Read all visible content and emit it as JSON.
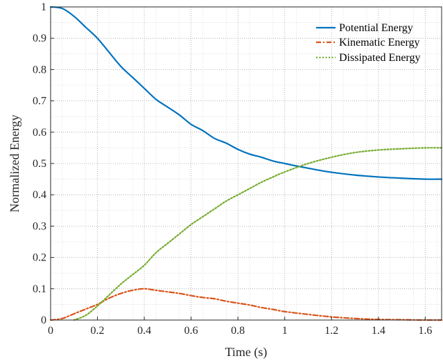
{
  "chart_data": {
    "type": "line",
    "xlabel": "Time (s)",
    "ylabel": "Normalized Energy",
    "xlim": [
      0,
      1.67
    ],
    "ylim": [
      0,
      1
    ],
    "xticks": [
      "0",
      "0.2",
      "0.4",
      "0.6",
      "0.8",
      "1",
      "1.2",
      "1.4",
      "1.6"
    ],
    "yticks": [
      "0",
      "0.1",
      "0.2",
      "0.3",
      "0.4",
      "0.5",
      "0.6",
      "0.7",
      "0.8",
      "0.9",
      "1"
    ],
    "grid": "dotted",
    "minor_grid": true,
    "legend_position": "top-right",
    "series": [
      {
        "name": "Potential Energy",
        "color": "#0072BD",
        "style": "solid",
        "x": [
          0,
          0.05,
          0.1,
          0.15,
          0.2,
          0.25,
          0.3,
          0.35,
          0.4,
          0.45,
          0.5,
          0.55,
          0.6,
          0.65,
          0.7,
          0.75,
          0.8,
          0.85,
          0.9,
          0.95,
          1.0,
          1.05,
          1.1,
          1.15,
          1.2,
          1.3,
          1.4,
          1.5,
          1.6,
          1.67
        ],
        "y": [
          1.0,
          0.995,
          0.97,
          0.935,
          0.9,
          0.855,
          0.81,
          0.775,
          0.74,
          0.705,
          0.68,
          0.655,
          0.625,
          0.605,
          0.58,
          0.565,
          0.545,
          0.53,
          0.52,
          0.508,
          0.5,
          0.492,
          0.485,
          0.478,
          0.472,
          0.463,
          0.457,
          0.453,
          0.45,
          0.45
        ]
      },
      {
        "name": "Kinematic Energy",
        "color": "#D95319",
        "style": "dashdot",
        "x": [
          0,
          0.05,
          0.1,
          0.15,
          0.2,
          0.25,
          0.3,
          0.35,
          0.4,
          0.45,
          0.5,
          0.55,
          0.6,
          0.65,
          0.7,
          0.75,
          0.8,
          0.85,
          0.9,
          0.95,
          1.0,
          1.1,
          1.2,
          1.3,
          1.4,
          1.5,
          1.6,
          1.67
        ],
        "y": [
          0,
          0.005,
          0.02,
          0.035,
          0.05,
          0.07,
          0.085,
          0.095,
          0.1,
          0.095,
          0.09,
          0.085,
          0.078,
          0.072,
          0.068,
          0.06,
          0.054,
          0.048,
          0.04,
          0.034,
          0.027,
          0.018,
          0.01,
          0.005,
          0.002,
          0.001,
          0.0,
          0.0
        ]
      },
      {
        "name": "Dissipated Energy",
        "color": "#77AC30",
        "style": "dotted",
        "x": [
          0.1,
          0.15,
          0.2,
          0.25,
          0.3,
          0.35,
          0.4,
          0.45,
          0.5,
          0.55,
          0.6,
          0.65,
          0.7,
          0.75,
          0.8,
          0.85,
          0.9,
          0.95,
          1.0,
          1.1,
          1.2,
          1.3,
          1.4,
          1.5,
          1.6,
          1.67
        ],
        "y": [
          0,
          0.015,
          0.045,
          0.08,
          0.115,
          0.145,
          0.175,
          0.215,
          0.245,
          0.275,
          0.305,
          0.33,
          0.355,
          0.38,
          0.4,
          0.42,
          0.44,
          0.457,
          0.473,
          0.5,
          0.52,
          0.535,
          0.543,
          0.547,
          0.55,
          0.55
        ]
      }
    ]
  }
}
